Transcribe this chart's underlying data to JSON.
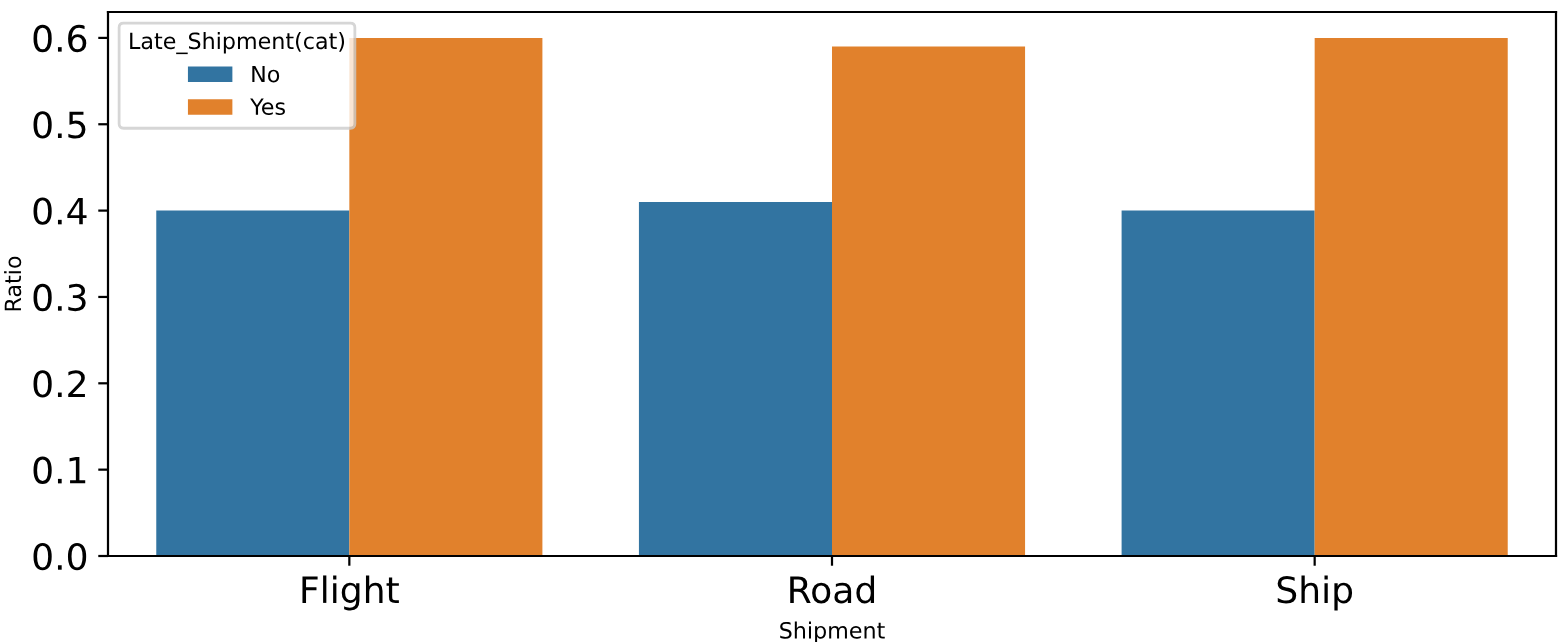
{
  "chart_data": {
    "type": "bar",
    "xlabel": "Shipment",
    "ylabel": "Ratio",
    "legend_title": "Late_Shipment(cat)",
    "categories": [
      "Flight",
      "Road",
      "Ship"
    ],
    "series": [
      {
        "name": "No",
        "color": "#3274a1",
        "values": [
          0.4,
          0.41,
          0.4
        ]
      },
      {
        "name": "Yes",
        "color": "#e1812c",
        "values": [
          0.6,
          0.59,
          0.6
        ]
      }
    ],
    "ylim": [
      0,
      0.63
    ],
    "yticks": [
      {
        "value": 0,
        "label": "0.0"
      },
      {
        "value": 0.1,
        "label": "0.1"
      },
      {
        "value": 0.2,
        "label": "0.2"
      },
      {
        "value": 0.3,
        "label": "0.3"
      },
      {
        "value": 0.4,
        "label": "0.4"
      },
      {
        "value": 0.5,
        "label": "0.5"
      },
      {
        "value": 0.6,
        "label": "0.6"
      }
    ],
    "grid": false,
    "legend": "top left"
  }
}
